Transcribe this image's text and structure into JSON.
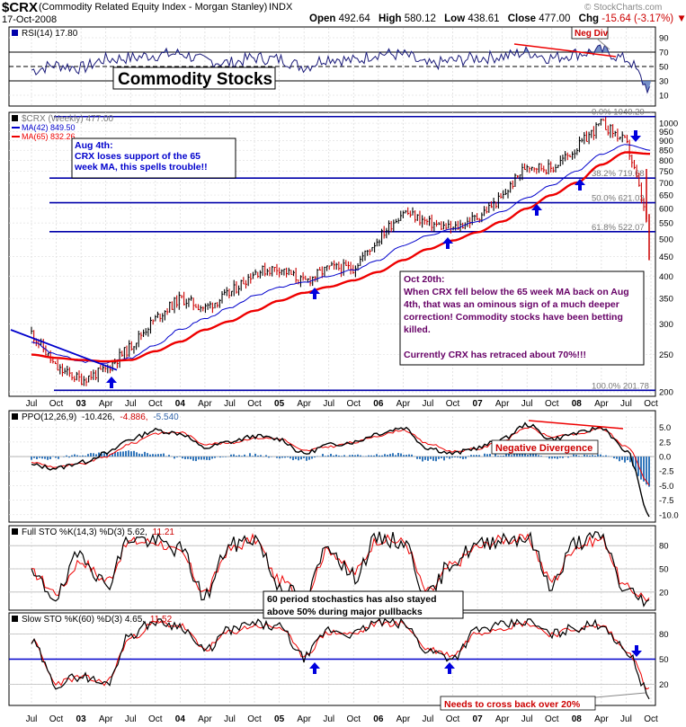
{
  "header": {
    "symbol": "$CRX",
    "name": "(Commodity Related Equity Index - Morgan Stanley)",
    "exchange": "INDX",
    "date": "17-Oct-2008",
    "open_label": "Open",
    "open": "492.64",
    "high_label": "High",
    "high": "580.12",
    "low_label": "Low",
    "low": "438.61",
    "close_label": "Close",
    "close": "477.00",
    "chg_label": "Chg",
    "chg": "-15.64 (-3.17%)",
    "watermark": "© StockCharts.com",
    "colors": {
      "price_up": "#000000",
      "price_down": "#cc0000",
      "ma42": "#0000cc",
      "ma65": "#ee0000",
      "annotation": "#0000cc",
      "annotation2": "#660066"
    }
  },
  "chart_data": [
    {
      "type": "line",
      "panel": "RSI",
      "legend": "RSI(14) 17.80",
      "yticks": [
        90,
        70,
        50,
        30,
        10
      ],
      "ylim": [
        0,
        100
      ],
      "reference_lines": [
        70,
        50,
        30
      ],
      "x": [
        "2002-07",
        "2002-10",
        "2003-01",
        "2003-04",
        "2003-07",
        "2003-10",
        "2004-01",
        "2004-04",
        "2004-07",
        "2004-10",
        "2005-01",
        "2005-04",
        "2005-07",
        "2005-10",
        "2006-01",
        "2006-04",
        "2006-07",
        "2006-10",
        "2007-01",
        "2007-04",
        "2007-07",
        "2007-10",
        "2008-01",
        "2008-04",
        "2008-07",
        "2008-10"
      ],
      "series": [
        {
          "values": [
            45,
            52,
            48,
            60,
            62,
            66,
            68,
            58,
            55,
            62,
            60,
            50,
            62,
            58,
            68,
            66,
            52,
            58,
            62,
            64,
            70,
            62,
            68,
            72,
            60,
            18
          ]
        }
      ],
      "annotations": [
        {
          "text": "Neg Div"
        },
        {
          "text": "Commodity Stocks"
        }
      ]
    },
    {
      "type": "line",
      "panel": "Price",
      "legend": [
        "$CRX (Weekly) 477.00",
        "MA(42) 849.50",
        "MA(65) 832.26"
      ],
      "yscale": "log",
      "ylim": [
        200,
        1050
      ],
      "yticks": [
        1000,
        950,
        900,
        850,
        800,
        750,
        700,
        650,
        600,
        550,
        500,
        450,
        400,
        350,
        300,
        250,
        200
      ],
      "x": [
        "2002-07",
        "2002-10",
        "2003-01",
        "2003-04",
        "2003-07",
        "2003-10",
        "2004-01",
        "2004-04",
        "2004-07",
        "2004-10",
        "2005-01",
        "2005-04",
        "2005-07",
        "2005-10",
        "2006-01",
        "2006-04",
        "2006-07",
        "2006-10",
        "2007-01",
        "2007-04",
        "2007-07",
        "2007-10",
        "2008-01",
        "2008-04",
        "2008-07",
        "2008-10"
      ],
      "series": [
        {
          "name": "$CRX",
          "values": [
            285,
            230,
            215,
            228,
            262,
            310,
            350,
            330,
            360,
            410,
            420,
            385,
            420,
            420,
            500,
            590,
            550,
            530,
            570,
            640,
            780,
            760,
            860,
            1000,
            890,
            477
          ]
        },
        {
          "name": "MA(42)",
          "values": [
            270,
            250,
            240,
            238,
            245,
            265,
            290,
            310,
            330,
            355,
            375,
            385,
            400,
            415,
            440,
            480,
            510,
            530,
            555,
            590,
            640,
            690,
            750,
            830,
            880,
            850
          ]
        },
        {
          "name": "MA(65)",
          "values": [
            250,
            245,
            242,
            240,
            242,
            255,
            270,
            290,
            305,
            325,
            345,
            362,
            375,
            390,
            410,
            440,
            470,
            495,
            520,
            555,
            600,
            650,
            700,
            780,
            840,
            832
          ]
        }
      ],
      "fib_levels": [
        {
          "label": "0.0% 1040.20",
          "value": 1040.2
        },
        {
          "label": "38.2% 719.68",
          "value": 719.68
        },
        {
          "label": "50.0% 621.03",
          "value": 621.03
        },
        {
          "label": "61.8% 522.07",
          "value": 522.07
        },
        {
          "label": "100.0% 201.78",
          "value": 201.78
        }
      ],
      "annotations": [
        {
          "title": "Aug 4th:",
          "text": "CRX loses support of the 65 week MA, this spells trouble!!"
        },
        {
          "title": "Oct 20th:",
          "text": "When CRX fell below the 65 week MA back on Aug 4th, that was an ominous sign of a much deeper correction!  Commodity stocks have been betting killed.",
          "text2": "Currently CRX has retraced about 70%!!!"
        }
      ]
    },
    {
      "type": "line",
      "panel": "PPO",
      "legend": [
        "PPO(12,26,9)",
        "-10.426,",
        "-4.886,",
        "-5.540"
      ],
      "yticks": [
        5.0,
        2.5,
        0.0,
        -2.5,
        -5.0,
        -7.5,
        -10.0
      ],
      "ylim": [
        -10.5,
        6.5
      ],
      "x": [
        "2002-07",
        "2002-10",
        "2003-01",
        "2003-04",
        "2003-07",
        "2003-10",
        "2004-01",
        "2004-04",
        "2004-07",
        "2004-10",
        "2005-01",
        "2005-04",
        "2005-07",
        "2005-10",
        "2006-01",
        "2006-04",
        "2006-07",
        "2006-10",
        "2007-01",
        "2007-04",
        "2007-07",
        "2007-10",
        "2008-01",
        "2008-04",
        "2008-07",
        "2008-10"
      ],
      "series": [
        {
          "name": "PPO",
          "values": [
            -1.5,
            -2.0,
            -1.0,
            0.5,
            3.0,
            4.5,
            4.0,
            1.5,
            2.5,
            3.5,
            3.0,
            0.5,
            2.0,
            2.5,
            4.0,
            5.0,
            1.5,
            0.5,
            1.5,
            3.0,
            5.5,
            3.0,
            4.0,
            5.0,
            1.0,
            -10.4
          ]
        },
        {
          "name": "Signal",
          "values": [
            -1.0,
            -1.8,
            -1.3,
            0.0,
            2.2,
            4.0,
            4.2,
            2.2,
            2.3,
            3.2,
            3.1,
            1.0,
            1.7,
            2.4,
            3.6,
            4.6,
            2.2,
            0.9,
            1.3,
            2.7,
            5.0,
            3.4,
            3.8,
            4.8,
            1.8,
            -4.9
          ]
        },
        {
          "name": "Histogram",
          "values": [
            -0.5,
            -0.2,
            0.3,
            0.5,
            0.8,
            0.5,
            -0.2,
            -0.7,
            0.2,
            0.3,
            -0.1,
            -0.5,
            0.3,
            0.1,
            0.4,
            0.4,
            -0.7,
            -0.4,
            0.2,
            0.3,
            0.5,
            -0.4,
            0.2,
            0.2,
            -0.8,
            -5.5
          ]
        }
      ],
      "annotations": [
        {
          "text": "Negative Divergence"
        }
      ]
    },
    {
      "type": "line",
      "panel": "FullSTO",
      "legend": [
        "Full STO %K(14,3) %D(3) 5.62,",
        "11.21"
      ],
      "yticks": [
        80,
        50,
        20
      ],
      "ylim": [
        0,
        100
      ],
      "x": [
        "2002-07",
        "2002-10",
        "2003-01",
        "2003-04",
        "2003-07",
        "2003-10",
        "2004-01",
        "2004-04",
        "2004-07",
        "2004-10",
        "2005-01",
        "2005-04",
        "2005-07",
        "2005-10",
        "2006-01",
        "2006-04",
        "2006-07",
        "2006-10",
        "2007-01",
        "2007-04",
        "2007-07",
        "2007-10",
        "2008-01",
        "2008-04",
        "2008-07",
        "2008-10"
      ],
      "series": [
        {
          "name": "%K",
          "values": [
            40,
            15,
            70,
            30,
            90,
            85,
            75,
            15,
            80,
            90,
            30,
            10,
            80,
            40,
            90,
            85,
            15,
            60,
            80,
            90,
            90,
            30,
            85,
            90,
            20,
            5.62
          ]
        },
        {
          "name": "%D",
          "values": [
            45,
            20,
            60,
            35,
            85,
            85,
            70,
            20,
            75,
            88,
            35,
            15,
            75,
            45,
            88,
            85,
            20,
            55,
            78,
            88,
            88,
            35,
            80,
            88,
            25,
            11.21
          ]
        }
      ],
      "annotations": [
        {
          "text": "60 period stochastics has also stayed above 50% during major pullbacks"
        }
      ]
    },
    {
      "type": "line",
      "panel": "SlowSTO",
      "legend": [
        "Slow STO %K(60) %D(3) 4.65,",
        "11.52"
      ],
      "yticks": [
        80,
        50,
        20
      ],
      "ylim": [
        0,
        100
      ],
      "x": [
        "2002-07",
        "2002-10",
        "2003-01",
        "2003-04",
        "2003-07",
        "2003-10",
        "2004-01",
        "2004-04",
        "2004-07",
        "2004-10",
        "2005-01",
        "2005-04",
        "2005-07",
        "2005-10",
        "2006-01",
        "2006-04",
        "2006-07",
        "2006-10",
        "2007-01",
        "2007-04",
        "2007-07",
        "2007-10",
        "2008-01",
        "2008-04",
        "2008-07",
        "2008-10"
      ],
      "series": [
        {
          "name": "%K",
          "values": [
            70,
            20,
            30,
            20,
            80,
            95,
            90,
            60,
            85,
            92,
            88,
            52,
            85,
            80,
            95,
            92,
            60,
            52,
            85,
            90,
            95,
            80,
            88,
            92,
            60,
            4.65
          ]
        },
        {
          "name": "%D",
          "values": [
            72,
            22,
            28,
            22,
            75,
            93,
            90,
            62,
            82,
            90,
            88,
            55,
            82,
            80,
            93,
            92,
            62,
            55,
            82,
            88,
            93,
            80,
            86,
            90,
            62,
            11.52
          ]
        }
      ],
      "annotations": [
        {
          "text": "Needs to cross back over 20%"
        }
      ]
    }
  ],
  "xaxis": {
    "labels": [
      "Jul",
      "Oct",
      "03",
      "Apr",
      "Jul",
      "Oct",
      "04",
      "Apr",
      "Jul",
      "Oct",
      "05",
      "Apr",
      "Jul",
      "Oct",
      "06",
      "Apr",
      "Jul",
      "Oct",
      "07",
      "Apr",
      "Jul",
      "Oct",
      "08",
      "Apr",
      "Jul",
      "Oct"
    ],
    "bold": [
      false,
      false,
      true,
      false,
      false,
      false,
      true,
      false,
      false,
      false,
      true,
      false,
      false,
      false,
      true,
      false,
      false,
      false,
      true,
      false,
      false,
      false,
      true,
      false,
      false,
      false
    ]
  }
}
